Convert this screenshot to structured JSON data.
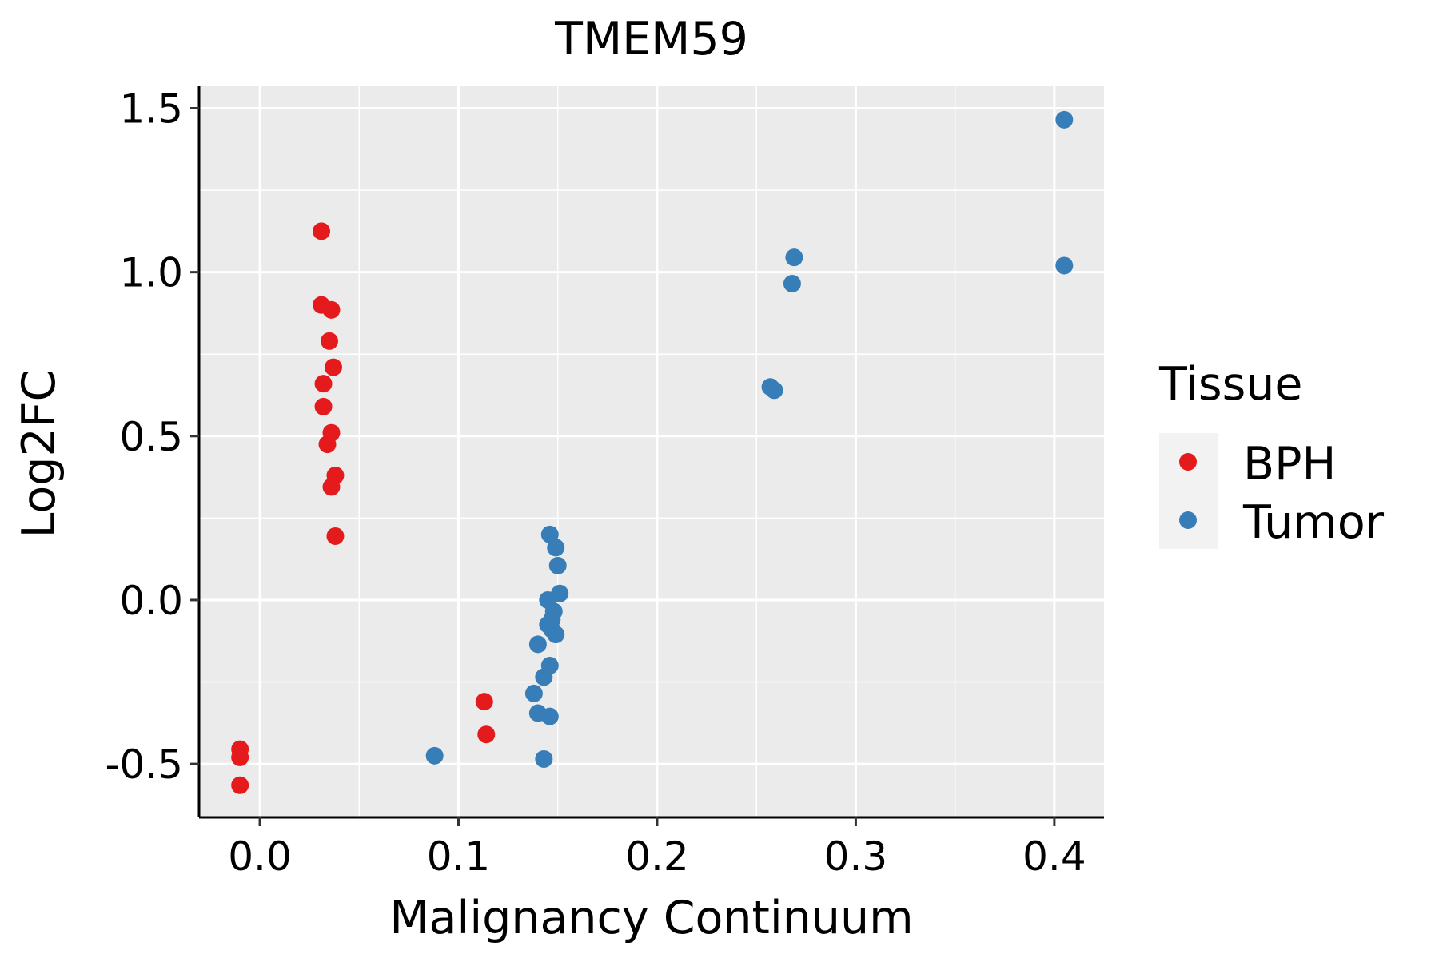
{
  "chart_data": {
    "type": "scatter",
    "title": "TMEM59",
    "xlabel": "Malignancy Continuum",
    "ylabel": "Log2FC",
    "xlim": [
      -0.0306,
      0.425
    ],
    "ylim": [
      -0.663,
      1.567
    ],
    "xticks": [
      0.0,
      0.1,
      0.2,
      0.3,
      0.4
    ],
    "xtick_labels": [
      "0.0",
      "0.1",
      "0.2",
      "0.3",
      "0.4"
    ],
    "yticks": [
      -0.5,
      0.0,
      0.5,
      1.0,
      1.5
    ],
    "ytick_labels": [
      "-0.5",
      "0.0",
      "0.5",
      "1.0",
      "1.5"
    ],
    "grid": true,
    "legend": {
      "title": "Tissue",
      "placement": "right"
    },
    "series": [
      {
        "name": "BPH",
        "color": "#E41A1C",
        "points": [
          [
            -0.01,
            -0.455
          ],
          [
            -0.01,
            -0.48
          ],
          [
            -0.01,
            -0.565
          ],
          [
            0.031,
            1.125
          ],
          [
            0.031,
            0.9
          ],
          [
            0.036,
            0.885
          ],
          [
            0.035,
            0.79
          ],
          [
            0.037,
            0.71
          ],
          [
            0.032,
            0.66
          ],
          [
            0.032,
            0.59
          ],
          [
            0.036,
            0.51
          ],
          [
            0.034,
            0.475
          ],
          [
            0.038,
            0.38
          ],
          [
            0.036,
            0.345
          ],
          [
            0.038,
            0.195
          ],
          [
            0.113,
            -0.31
          ],
          [
            0.114,
            -0.41
          ]
        ]
      },
      {
        "name": "Tumor",
        "color": "#377EB8",
        "points": [
          [
            0.405,
            1.465
          ],
          [
            0.405,
            1.02
          ],
          [
            0.269,
            1.045
          ],
          [
            0.268,
            0.965
          ],
          [
            0.257,
            0.65
          ],
          [
            0.259,
            0.64
          ],
          [
            0.088,
            -0.475
          ],
          [
            0.146,
            0.2
          ],
          [
            0.149,
            0.16
          ],
          [
            0.15,
            0.105
          ],
          [
            0.151,
            0.02
          ],
          [
            0.145,
            0.0
          ],
          [
            0.148,
            -0.035
          ],
          [
            0.147,
            -0.06
          ],
          [
            0.145,
            -0.075
          ],
          [
            0.147,
            -0.09
          ],
          [
            0.149,
            -0.105
          ],
          [
            0.14,
            -0.135
          ],
          [
            0.146,
            -0.2
          ],
          [
            0.143,
            -0.235
          ],
          [
            0.138,
            -0.285
          ],
          [
            0.14,
            -0.345
          ],
          [
            0.146,
            -0.355
          ],
          [
            0.143,
            -0.485
          ]
        ]
      }
    ]
  }
}
